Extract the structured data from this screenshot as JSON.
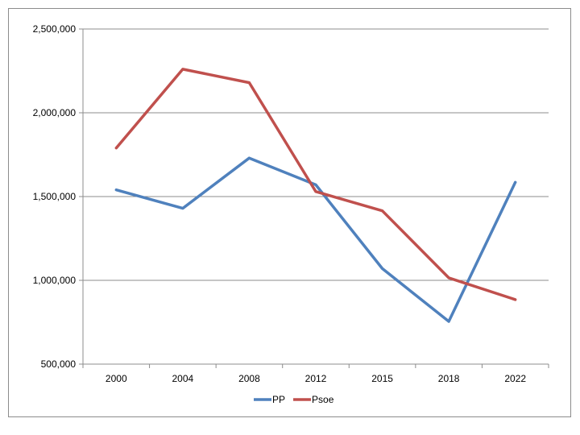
{
  "chart_data": {
    "type": "line",
    "title": "",
    "xlabel": "",
    "ylabel": "",
    "categories": [
      "2000",
      "2004",
      "2008",
      "2012",
      "2015",
      "2018",
      "2022"
    ],
    "y_ticks": [
      "500,000",
      "1,000,000",
      "1,500,000",
      "2,000,000",
      "2,500,000"
    ],
    "y_tick_values": [
      500000,
      1000000,
      1500000,
      2000000,
      2500000
    ],
    "ylim": [
      500000,
      2500000
    ],
    "grid": true,
    "legend_position": "bottom",
    "series": [
      {
        "name": "PP",
        "color": "#4f81bd",
        "values": [
          1540000,
          1430000,
          1730000,
          1570000,
          1070000,
          755000,
          1585000
        ]
      },
      {
        "name": "Psoe",
        "color": "#c0504d",
        "values": [
          1790000,
          2260000,
          2180000,
          1530000,
          1415000,
          1015000,
          885000
        ]
      }
    ]
  }
}
